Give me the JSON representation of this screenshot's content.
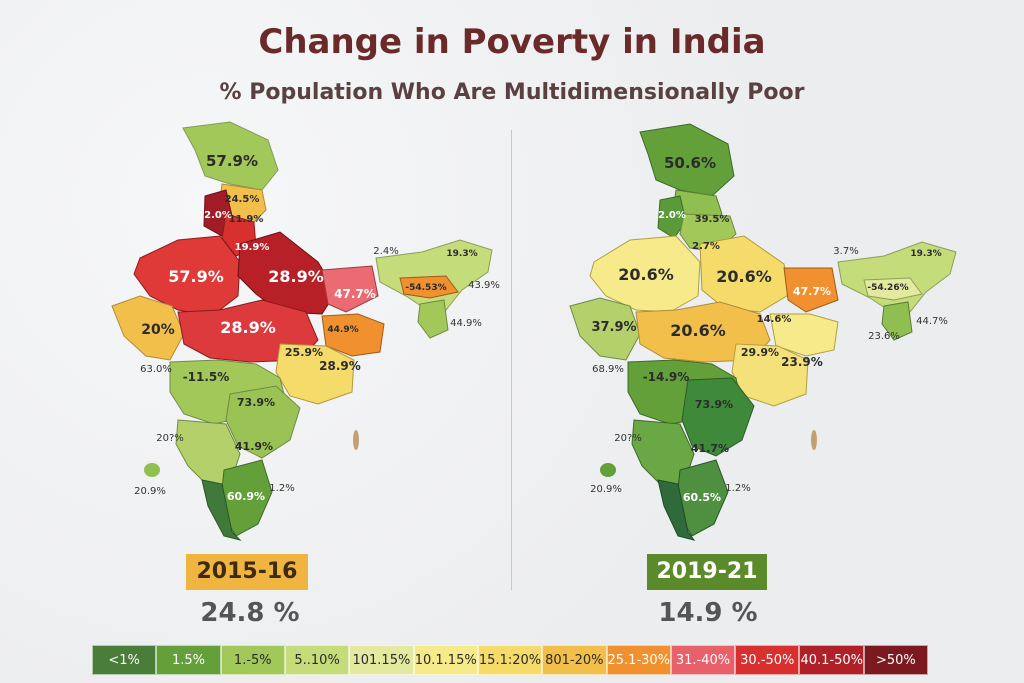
{
  "title": "Change in Poverty in India",
  "subtitle": "% Population Who Are Multidimensionally Poor",
  "colors": {
    "title": "#6b2a2a",
    "map_2015_accent": "#f0b540",
    "map_2019_accent": "#5a8a2a"
  },
  "maps": [
    {
      "year": "2015-16",
      "national": "24.8 %",
      "labels": [
        "57.9%",
        "24.5%",
        "2.0%",
        "11.9%",
        "19.9%",
        "57.9%",
        "28.9%",
        "47.7%",
        "20%",
        "28.9%",
        "44.9%",
        "25.9%",
        "28.9%",
        "-11.5%",
        "73.9%",
        "41.9%",
        "60.9%",
        "1.2%",
        "20.9%",
        "63.0%",
        "20?%",
        "2.4%",
        "19.3%",
        "-54.53%",
        "43.9%",
        "44.9%"
      ]
    },
    {
      "year": "2019-21",
      "national": "14.9 %",
      "labels": [
        "50.6%",
        "2.0%",
        "39.5%",
        "2.7%",
        "20.6%",
        "20.6%",
        "47.7%",
        "37.9%",
        "20.6%",
        "14.6%",
        "29.9%",
        "23.9%",
        "-14.9%",
        "73.9%",
        "41.7%",
        "60.5%",
        "1.2%",
        "68.9%",
        "20?%",
        "3.7%",
        "19.3%",
        "-54.26%",
        "23.6%",
        "44.7%",
        "20.9%"
      ]
    }
  ],
  "legend": [
    {
      "label": "<1%",
      "color": "#4a7d3a",
      "text": "#ffffff"
    },
    {
      "label": "1.5%",
      "color": "#63a03a",
      "text": "#ffffff"
    },
    {
      "label": "1.-5%",
      "color": "#a3c85a",
      "text": "#2a2a2a"
    },
    {
      "label": "5..10%",
      "color": "#c4dc7a",
      "text": "#2a2a2a"
    },
    {
      "label": "101.15%",
      "color": "#e3eaa0",
      "text": "#2a2a2a"
    },
    {
      "label": "10.1.15%",
      "color": "#f6ea8a",
      "text": "#2a2a2a"
    },
    {
      "label": "15.1:20%",
      "color": "#f5dc6a",
      "text": "#2a2a2a"
    },
    {
      "label": "801-20%",
      "color": "#f2c04a",
      "text": "#2a2a2a"
    },
    {
      "label": "25.1-30%",
      "color": "#f0902e",
      "text": "#ffffff"
    },
    {
      "label": "31.-40%",
      "color": "#e8606a",
      "text": "#ffffff"
    },
    {
      "label": "30.-50%",
      "color": "#d8302e",
      "text": "#ffffff"
    },
    {
      "label": "40.1-50%",
      "color": "#b02028",
      "text": "#ffffff"
    },
    {
      "label": ">50%",
      "color": "#7a1a20",
      "text": "#ffffff"
    }
  ]
}
